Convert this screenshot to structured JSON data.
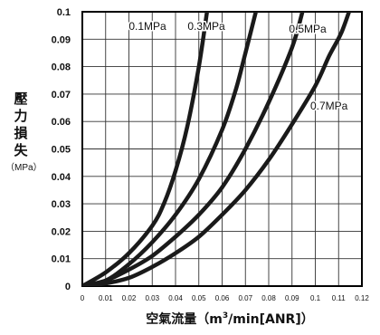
{
  "chart_data": {
    "type": "line",
    "title": "",
    "ylabel": {
      "main": [
        "壓",
        "力",
        "損",
        "失"
      ],
      "unit": "（MPa）"
    },
    "xlabel": {
      "main": "空氣流量",
      "open": "（m",
      "sup": "3",
      "close": "/min[ANR]）"
    },
    "xlim": [
      0,
      0.12
    ],
    "ylim": [
      0,
      0.1
    ],
    "x_ticks": [
      0,
      0.01,
      0.02,
      0.03,
      0.04,
      0.05,
      0.06,
      0.07,
      0.08,
      0.09,
      0.1,
      0.11,
      0.12
    ],
    "x_tick_labels": [
      "0",
      "0.01",
      "0.02",
      "0.03",
      "0.04",
      "0.05",
      "0.06",
      "0.07",
      "0.08",
      "0.09",
      "0.1",
      "0.11",
      "0.12"
    ],
    "y_ticks": [
      0,
      0.01,
      0.02,
      0.03,
      0.04,
      0.05,
      0.06,
      0.07,
      0.08,
      0.09,
      0.1
    ],
    "y_tick_labels": [
      "0",
      "0.01",
      "0.02",
      "0.03",
      "0.04",
      "0.05",
      "0.06",
      "0.07",
      "0.08",
      "0.09",
      "0.1"
    ],
    "grid": true,
    "line_color": "#1a1a1a",
    "grid_color": "#333333",
    "series": [
      {
        "name": "0.1MPa",
        "points": [
          [
            0,
            0
          ],
          [
            0.01,
            0.005
          ],
          [
            0.02,
            0.012
          ],
          [
            0.03,
            0.022
          ],
          [
            0.035,
            0.03
          ],
          [
            0.04,
            0.042
          ],
          [
            0.045,
            0.058
          ],
          [
            0.05,
            0.08
          ],
          [
            0.0535,
            0.1
          ]
        ]
      },
      {
        "name": "0.3MPa",
        "points": [
          [
            0,
            0
          ],
          [
            0.01,
            0.002
          ],
          [
            0.02,
            0.008
          ],
          [
            0.03,
            0.016
          ],
          [
            0.04,
            0.026
          ],
          [
            0.05,
            0.039
          ],
          [
            0.06,
            0.057
          ],
          [
            0.066,
            0.072
          ],
          [
            0.07,
            0.085
          ],
          [
            0.0745,
            0.1
          ]
        ]
      },
      {
        "name": "0.5MPa",
        "points": [
          [
            0,
            0
          ],
          [
            0.01,
            0.002
          ],
          [
            0.02,
            0.006
          ],
          [
            0.03,
            0.011
          ],
          [
            0.04,
            0.018
          ],
          [
            0.05,
            0.026
          ],
          [
            0.06,
            0.036
          ],
          [
            0.07,
            0.05
          ],
          [
            0.08,
            0.067
          ],
          [
            0.09,
            0.087
          ],
          [
            0.0945,
            0.1
          ]
        ]
      },
      {
        "name": "0.7MPa",
        "points": [
          [
            0,
            0
          ],
          [
            0.01,
            0.001
          ],
          [
            0.02,
            0.003
          ],
          [
            0.03,
            0.007
          ],
          [
            0.04,
            0.012
          ],
          [
            0.05,
            0.018
          ],
          [
            0.06,
            0.026
          ],
          [
            0.07,
            0.035
          ],
          [
            0.08,
            0.046
          ],
          [
            0.09,
            0.059
          ],
          [
            0.1,
            0.073
          ],
          [
            0.106,
            0.084
          ],
          [
            0.111,
            0.092
          ],
          [
            0.1145,
            0.1
          ]
        ]
      }
    ],
    "annotations": [
      {
        "text": "0.1MPa",
        "series": "0.1MPa",
        "placement": "left of the 0.1MPa curve top"
      },
      {
        "text": "0.3MPa",
        "series": "0.3MPa",
        "placement": "left of the 0.3MPa curve top"
      },
      {
        "text": "0.5MPa",
        "series": "0.5MPa",
        "placement": "right of the 0.5MPa curve top"
      },
      {
        "text": "0.7MPa",
        "series": "0.7MPa",
        "placement": "below right of the 0.7MPa curve"
      }
    ]
  }
}
